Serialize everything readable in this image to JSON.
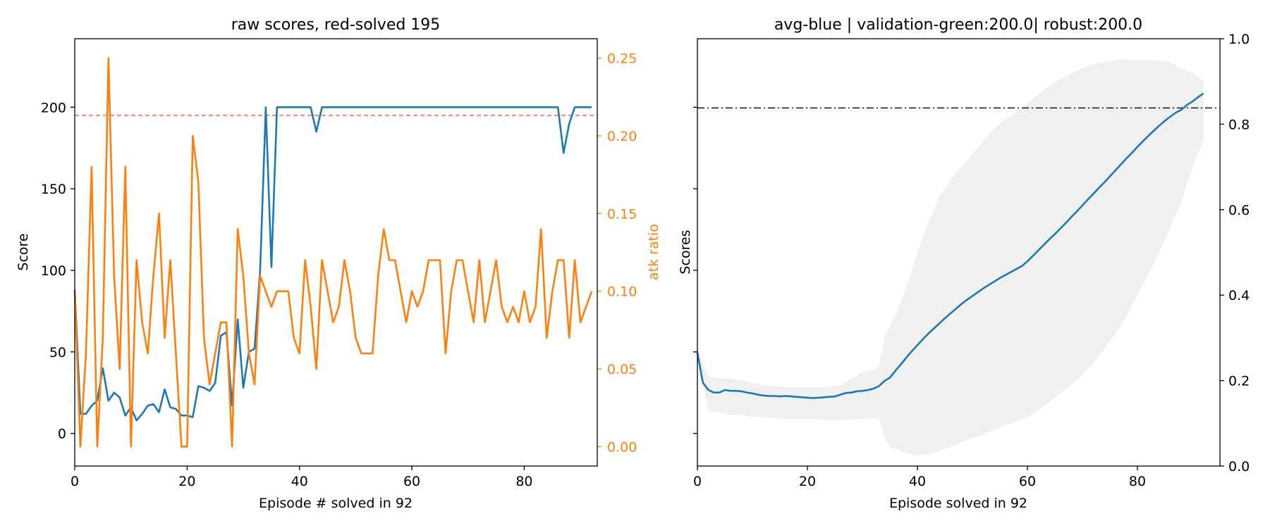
{
  "chart_data": [
    {
      "type": "line",
      "title": "raw scores, red-solved 195",
      "xlabel": "Episode # solved in 92",
      "ylabel": "Score",
      "y2label": "atk ratio",
      "xlim": [
        0,
        93
      ],
      "ylim": [
        -20,
        242
      ],
      "y2lim": [
        -0.0125,
        0.2625
      ],
      "xticks": [
        0,
        20,
        40,
        60,
        80
      ],
      "yticks": [
        0,
        50,
        100,
        150,
        200
      ],
      "y2ticks": [
        0.0,
        0.05,
        0.1,
        0.15,
        0.2,
        0.25
      ],
      "y2ticks_labels": [
        "0.00",
        "0.05",
        "0.10",
        "0.15",
        "0.20",
        "0.25"
      ],
      "hline": {
        "y": 195,
        "color": "#ff0000",
        "style": "dashed"
      },
      "colors": {
        "score": "#1f77b4",
        "atk": "#ff7f0e"
      },
      "series": [
        {
          "axis": "left",
          "x": [
            0,
            1,
            2,
            3,
            4,
            5,
            6,
            7,
            8,
            9,
            10,
            11,
            12,
            13,
            14,
            15,
            16,
            17,
            18,
            19,
            20,
            21,
            22,
            23,
            24,
            25,
            26,
            27,
            28,
            29,
            30,
            31,
            32,
            33,
            34,
            35,
            36,
            37,
            38,
            39,
            40,
            41,
            42,
            43,
            44,
            45,
            46,
            47,
            48,
            49,
            50,
            51,
            52,
            53,
            54,
            55,
            56,
            57,
            58,
            59,
            60,
            61,
            62,
            63,
            64,
            65,
            66,
            67,
            68,
            69,
            70,
            71,
            72,
            73,
            74,
            75,
            76,
            77,
            78,
            79,
            80,
            81,
            82,
            83,
            84,
            85,
            86,
            87,
            88,
            89,
            90,
            91,
            92
          ],
          "values": [
            88,
            12,
            12,
            17,
            20,
            40,
            20,
            25,
            22,
            11,
            16,
            8,
            12,
            17,
            18,
            13,
            27,
            16,
            15,
            11,
            11,
            10,
            29,
            28,
            26,
            31,
            60,
            62,
            17,
            70,
            28,
            50,
            52,
            100,
            200,
            102,
            200,
            200,
            200,
            200,
            200,
            200,
            200,
            185,
            200,
            200,
            200,
            200,
            200,
            200,
            200,
            200,
            200,
            200,
            200,
            200,
            200,
            200,
            200,
            200,
            200,
            200,
            200,
            200,
            200,
            200,
            200,
            200,
            200,
            200,
            200,
            200,
            200,
            200,
            200,
            200,
            200,
            200,
            200,
            200,
            200,
            200,
            200,
            200,
            200,
            200,
            200,
            172,
            190,
            200,
            200,
            200,
            200
          ]
        },
        {
          "axis": "right",
          "x": [
            0,
            1,
            2,
            3,
            4,
            5,
            6,
            7,
            8,
            9,
            10,
            11,
            12,
            13,
            14,
            15,
            16,
            17,
            18,
            19,
            20,
            21,
            22,
            23,
            24,
            25,
            26,
            27,
            28,
            29,
            30,
            31,
            32,
            33,
            34,
            35,
            36,
            37,
            38,
            39,
            40,
            41,
            42,
            43,
            44,
            45,
            46,
            47,
            48,
            49,
            50,
            51,
            52,
            53,
            54,
            55,
            56,
            57,
            58,
            59,
            60,
            61,
            62,
            63,
            64,
            65,
            66,
            67,
            68,
            69,
            70,
            71,
            72,
            73,
            74,
            75,
            76,
            77,
            78,
            79,
            80,
            81,
            82,
            83,
            84,
            85,
            86,
            87,
            88,
            89,
            90,
            91,
            92
          ],
          "values": [
            0.1,
            0.0,
            0.06,
            0.18,
            0.0,
            0.07,
            0.25,
            0.11,
            0.05,
            0.18,
            0.0,
            0.12,
            0.08,
            0.06,
            0.11,
            0.15,
            0.07,
            0.12,
            0.06,
            0.0,
            0.0,
            0.2,
            0.17,
            0.07,
            0.04,
            0.06,
            0.08,
            0.08,
            0.0,
            0.14,
            0.11,
            0.06,
            0.04,
            0.11,
            0.1,
            0.09,
            0.1,
            0.1,
            0.1,
            0.07,
            0.06,
            0.12,
            0.09,
            0.05,
            0.12,
            0.1,
            0.08,
            0.09,
            0.12,
            0.1,
            0.07,
            0.06,
            0.06,
            0.06,
            0.11,
            0.14,
            0.12,
            0.12,
            0.1,
            0.08,
            0.1,
            0.09,
            0.1,
            0.12,
            0.12,
            0.12,
            0.06,
            0.1,
            0.12,
            0.12,
            0.1,
            0.08,
            0.12,
            0.08,
            0.1,
            0.12,
            0.09,
            0.08,
            0.09,
            0.08,
            0.1,
            0.08,
            0.09,
            0.14,
            0.07,
            0.1,
            0.12,
            0.12,
            0.07,
            0.12,
            0.08,
            0.09,
            0.1
          ]
        }
      ]
    },
    {
      "type": "line",
      "title": "avg-blue | validation-green:200.0| robust:200.0",
      "xlabel": "Episode solved in 92",
      "ylabel": "Scores",
      "xlim": [
        0,
        95
      ],
      "ylim": [
        0.0,
        1.0
      ],
      "xticks": [
        0,
        20,
        40,
        60,
        80
      ],
      "yticks": [
        0.0,
        0.2,
        0.4,
        0.6,
        0.8,
        1.0
      ],
      "yticks_labels": [
        "0.0",
        "0.2",
        "0.4",
        "0.6",
        "0.8",
        "1.0"
      ],
      "hline": {
        "y": 0.838,
        "color": "#000000",
        "style": "dashdot"
      },
      "colors": {
        "avg": "#1f77b4",
        "band": "#f0f0f0"
      },
      "series": [
        {
          "x": [
            0,
            1,
            2,
            3,
            4,
            5,
            6,
            7,
            8,
            9,
            10,
            11,
            12,
            13,
            14,
            15,
            16,
            17,
            18,
            19,
            20,
            21,
            22,
            23,
            24,
            25,
            26,
            27,
            28,
            29,
            30,
            31,
            32,
            33,
            34,
            35,
            36,
            37,
            38,
            39,
            40,
            41,
            42,
            43,
            44,
            45,
            46,
            47,
            48,
            49,
            50,
            51,
            52,
            53,
            54,
            55,
            56,
            57,
            58,
            59,
            60,
            61,
            62,
            63,
            64,
            65,
            66,
            67,
            68,
            69,
            70,
            71,
            72,
            73,
            74,
            75,
            76,
            77,
            78,
            79,
            80,
            81,
            82,
            83,
            84,
            85,
            86,
            87,
            88,
            89,
            90,
            91,
            92
          ],
          "values": [
            0.265,
            0.195,
            0.178,
            0.172,
            0.172,
            0.178,
            0.176,
            0.176,
            0.175,
            0.172,
            0.17,
            0.167,
            0.165,
            0.164,
            0.164,
            0.163,
            0.164,
            0.163,
            0.162,
            0.161,
            0.16,
            0.159,
            0.16,
            0.161,
            0.162,
            0.163,
            0.167,
            0.171,
            0.172,
            0.175,
            0.176,
            0.178,
            0.181,
            0.187,
            0.199,
            0.207,
            0.223,
            0.238,
            0.254,
            0.269,
            0.283,
            0.297,
            0.31,
            0.322,
            0.334,
            0.346,
            0.357,
            0.368,
            0.379,
            0.389,
            0.398,
            0.407,
            0.416,
            0.424,
            0.432,
            0.44,
            0.447,
            0.454,
            0.461,
            0.468,
            0.479,
            0.492,
            0.505,
            0.518,
            0.531,
            0.543,
            0.556,
            0.569,
            0.583,
            0.596,
            0.61,
            0.624,
            0.637,
            0.651,
            0.664,
            0.678,
            0.692,
            0.706,
            0.72,
            0.733,
            0.747,
            0.76,
            0.773,
            0.785,
            0.797,
            0.808,
            0.818,
            0.827,
            0.834,
            0.845,
            0.853,
            0.863,
            0.872
          ]
        }
      ],
      "band": {
        "x": [
          0,
          2,
          4,
          6,
          8,
          10,
          12,
          14,
          16,
          18,
          20,
          22,
          24,
          26,
          28,
          30,
          32,
          33,
          34,
          35,
          36,
          38,
          40,
          42,
          44,
          46,
          48,
          50,
          52,
          54,
          56,
          58,
          60,
          62,
          64,
          66,
          68,
          70,
          72,
          74,
          76,
          78,
          80,
          82,
          84,
          86,
          88,
          90,
          92
        ],
        "upper": [
          0.27,
          0.21,
          0.205,
          0.205,
          0.2,
          0.195,
          0.19,
          0.187,
          0.185,
          0.185,
          0.184,
          0.184,
          0.185,
          0.19,
          0.205,
          0.22,
          0.225,
          0.232,
          0.3,
          0.33,
          0.35,
          0.42,
          0.5,
          0.57,
          0.63,
          0.67,
          0.7,
          0.73,
          0.76,
          0.79,
          0.81,
          0.83,
          0.85,
          0.87,
          0.89,
          0.905,
          0.92,
          0.93,
          0.94,
          0.945,
          0.95,
          0.952,
          0.95,
          0.95,
          0.948,
          0.945,
          0.93,
          0.92,
          0.9
        ],
        "lower": [
          0.26,
          0.13,
          0.125,
          0.12,
          0.12,
          0.115,
          0.115,
          0.112,
          0.11,
          0.11,
          0.11,
          0.11,
          0.107,
          0.107,
          0.11,
          0.11,
          0.113,
          0.11,
          0.07,
          0.045,
          0.04,
          0.03,
          0.025,
          0.027,
          0.035,
          0.045,
          0.055,
          0.065,
          0.075,
          0.085,
          0.095,
          0.105,
          0.115,
          0.13,
          0.15,
          0.17,
          0.19,
          0.215,
          0.24,
          0.275,
          0.31,
          0.35,
          0.4,
          0.45,
          0.5,
          0.56,
          0.62,
          0.7,
          0.76
        ]
      }
    }
  ]
}
